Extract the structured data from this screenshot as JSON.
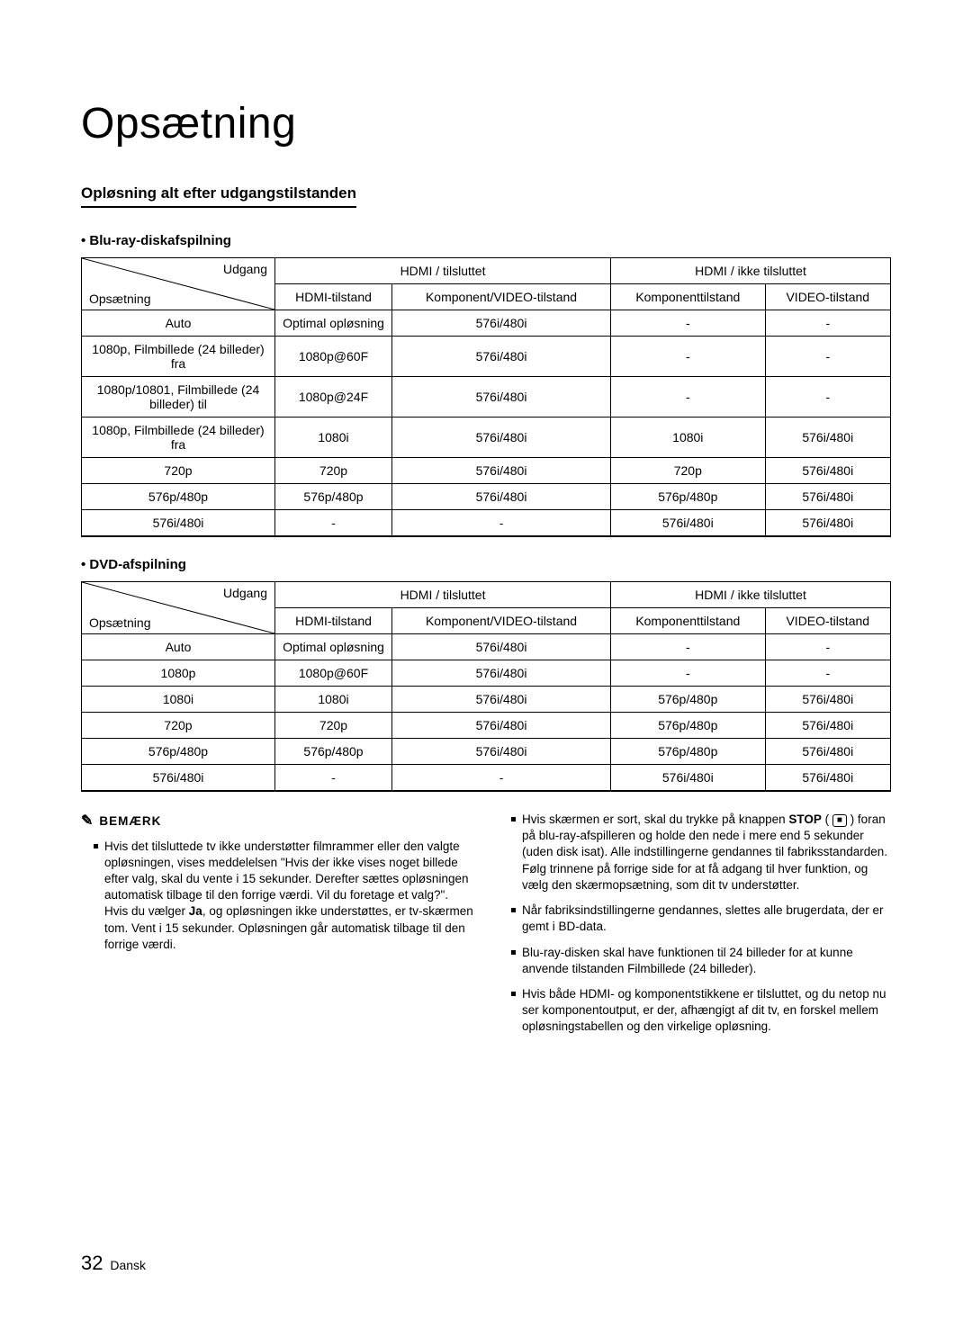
{
  "page": {
    "title": "Opsætning",
    "subheading": "Opløsning alt efter udgangstilstanden",
    "footer_number": "32",
    "footer_lang": "Dansk"
  },
  "tables": {
    "diag_top": "Udgang",
    "diag_bot": "Opsætning",
    "header_hdmi_connected": "HDMI / tilsluttet",
    "header_hdmi_not_connected": "HDMI / ikke tilsluttet",
    "sub_hdmi_mode": "HDMI-tilstand",
    "sub_comp_video_mode": "Komponent/VIDEO-tilstand",
    "sub_component_mode": "Komponenttilstand",
    "sub_video_mode": "VIDEO-tilstand",
    "bluray": {
      "label": "• Blu-ray-diskafspilning",
      "rows": [
        [
          "Auto",
          "Optimal opløsning",
          "576i/480i",
          "-",
          "-"
        ],
        [
          "1080p, Filmbillede (24 billeder) fra",
          "1080p@60F",
          "576i/480i",
          "-",
          "-"
        ],
        [
          "1080p/10801, Filmbillede (24 billeder) til",
          "1080p@24F",
          "576i/480i",
          "-",
          "-"
        ],
        [
          "1080p, Filmbillede (24 billeder) fra",
          "1080i",
          "576i/480i",
          "1080i",
          "576i/480i"
        ],
        [
          "720p",
          "720p",
          "576i/480i",
          "720p",
          "576i/480i"
        ],
        [
          "576p/480p",
          "576p/480p",
          "576i/480i",
          "576p/480p",
          "576i/480i"
        ],
        [
          "576i/480i",
          "-",
          "-",
          "576i/480i",
          "576i/480i"
        ]
      ]
    },
    "dvd": {
      "label": "• DVD-afspilning",
      "rows": [
        [
          "Auto",
          "Optimal opløsning",
          "576i/480i",
          "-",
          "-"
        ],
        [
          "1080p",
          "1080p@60F",
          "576i/480i",
          "-",
          "-"
        ],
        [
          "1080i",
          "1080i",
          "576i/480i",
          "576p/480p",
          "576i/480i"
        ],
        [
          "720p",
          "720p",
          "576i/480i",
          "576p/480p",
          "576i/480i"
        ],
        [
          "576p/480p",
          "576p/480p",
          "576i/480i",
          "576p/480p",
          "576i/480i"
        ],
        [
          "576i/480i",
          "-",
          "-",
          "576i/480i",
          "576i/480i"
        ]
      ]
    }
  },
  "notes": {
    "header": "BEMÆRK",
    "left": [
      "Hvis det tilsluttede tv ikke understøtter filmrammer eller den valgte opløsningen, vises meddelelsen \"Hvis der ikke vises noget billede efter valg, skal du vente i 15 sekunder. Derefter sættes opløsningen automatisk tilbage til den forrige værdi. Vil du foretage et valg?\". Hvis du vælger Ja, og opløsningen ikke understøttes, er tv-skærmen tom. Vent i 15 sekunder. Opløsningen går automatisk tilbage til den forrige værdi."
    ],
    "right": [
      "Hvis skærmen er sort, skal du trykke på knappen STOP ( ■ ) foran på blu-ray-afspilleren og holde den nede i mere end 5 sekunder (uden disk isat). Alle indstillingerne gendannes til fabriksstandarden. Følg trinnene på forrige side for at få adgang til hver funktion, og vælg den skærmopsætning, som dit tv understøtter.",
      "Når fabriksindstillingerne gendannes, slettes alle brugerdata, der er gemt i BD-data.",
      "Blu-ray-disken skal have funktionen til 24 billeder for at kunne anvende tilstanden Filmbillede (24 billeder).",
      "Hvis både HDMI- og komponentstikkene er tilsluttet, og du netop nu ser komponentoutput, er der, afhængigt af dit tv, en forskel mellem opløsningstabellen og den virkelige opløsning."
    ]
  }
}
